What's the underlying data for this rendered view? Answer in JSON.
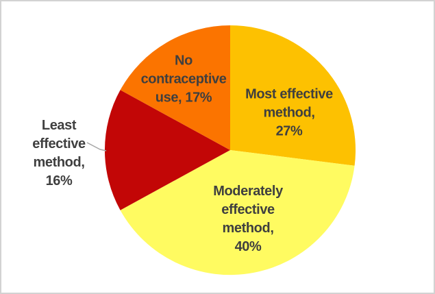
{
  "chart_data": {
    "type": "pie",
    "title": "",
    "legend_position": "none",
    "start_angle_deg": 0,
    "direction": "clockwise",
    "slices": [
      {
        "id": "most",
        "label": "Most effective method",
        "value": 27,
        "color": "#fdc101",
        "label_placement": "inside"
      },
      {
        "id": "moderate",
        "label": "Moderately effective method",
        "value": 40,
        "color": "#fffb61",
        "label_placement": "inside"
      },
      {
        "id": "least",
        "label": "Least effective method",
        "value": 16,
        "color": "#c20606",
        "label_placement": "outside-with-leader-line"
      },
      {
        "id": "no_use",
        "label": "No contraceptive use",
        "value": 17,
        "color": "#fb7400",
        "label_placement": "inside"
      }
    ],
    "data_label_format": "name, percent"
  },
  "labels": {
    "most": "Most effective\nmethod,\n27%",
    "no_use": "No\ncontraceptive\nuse, 17%",
    "moderate": "Moderately\neffective\nmethod,\n40%",
    "least": "Least\neffective\nmethod,\n16%"
  },
  "colors": {
    "label_text": "#3f3f3f",
    "leader_line": "#a6a6a6",
    "frame_border": "#d2d2d2",
    "background": "#ffffff"
  }
}
